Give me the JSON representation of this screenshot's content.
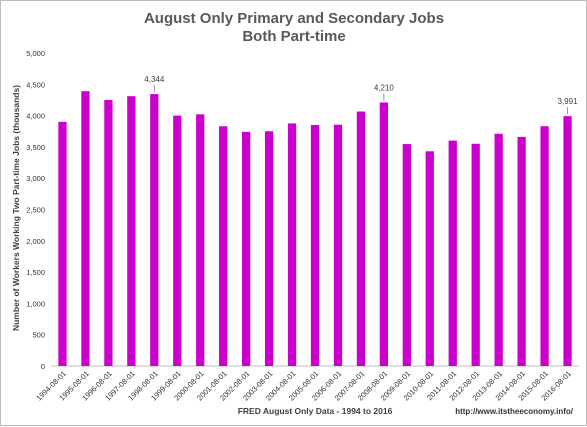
{
  "chart_data": {
    "type": "bar",
    "title": "August Only Primary and Secondary Jobs",
    "subtitle": "Both Part-time",
    "ylabel": "Number of Workers Working Two Part-time Jobs (thousands)",
    "xlabel": "FRED August Only Data - 1994 to 2016",
    "source_credit": "http://www.itstheeconomy.info/",
    "ylim": [
      0,
      5000
    ],
    "ytick_step": 500,
    "grid": false,
    "bar_color": "#cc00cc",
    "categories": [
      "1994-08-01",
      "1995-08-01",
      "1996-08-01",
      "1997-08-01",
      "1998-08-01",
      "1999-08-01",
      "2000-08-01",
      "2001-08-01",
      "2002-08-01",
      "2003-08-01",
      "2004-08-01",
      "2005-08-01",
      "2006-08-01",
      "2007-08-01",
      "2008-08-01",
      "2009-08-01",
      "2010-08-01",
      "2011-08-01",
      "2012-08-01",
      "2013-08-01",
      "2014-08-01",
      "2015-08-01",
      "2016-08-01"
    ],
    "values": [
      3900,
      4390,
      4250,
      4310,
      4344,
      4000,
      4020,
      3830,
      3740,
      3750,
      3875,
      3850,
      3855,
      4065,
      4210,
      3545,
      3430,
      3600,
      3550,
      3710,
      3660,
      3830,
      3991
    ],
    "annotations": [
      {
        "category": "1998-08-01",
        "value": 4344,
        "text": "4,344"
      },
      {
        "category": "2008-08-01",
        "value": 4210,
        "text": "4,210"
      },
      {
        "category": "2016-08-01",
        "value": 3991,
        "text": "3,991"
      }
    ]
  }
}
